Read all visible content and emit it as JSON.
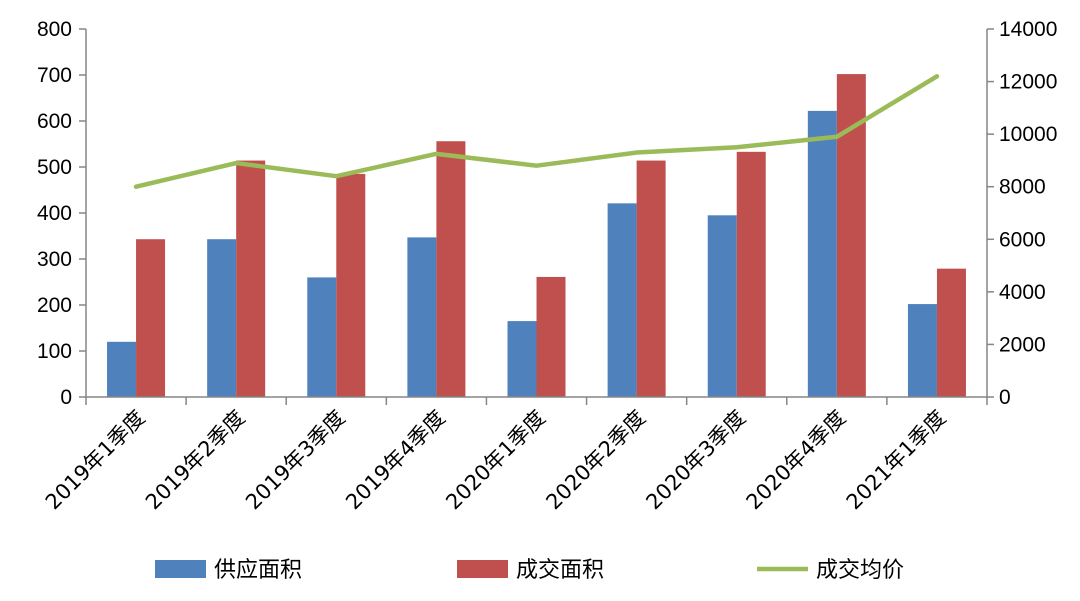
{
  "chart_data": {
    "type": "bar+line",
    "categories": [
      "2019年1季度",
      "2019年2季度",
      "2019年3季度",
      "2019年4季度",
      "2020年1季度",
      "2020年2季度",
      "2020年3季度",
      "2020年4季度",
      "2021年1季度"
    ],
    "series": [
      {
        "name": "供应面积",
        "type": "bar",
        "axis": "left",
        "color": "#4f81bd",
        "values": [
          120,
          343,
          260,
          347,
          165,
          421,
          395,
          622,
          202
        ]
      },
      {
        "name": "成交面积",
        "type": "bar",
        "axis": "left",
        "color": "#c0504d",
        "values": [
          343,
          514,
          485,
          556,
          261,
          514,
          533,
          702,
          279
        ]
      },
      {
        "name": "成交均价",
        "type": "line",
        "axis": "right",
        "color": "#9bbb59",
        "values": [
          8000,
          8900,
          8400,
          9250,
          8800,
          9300,
          9500,
          9900,
          12200
        ]
      }
    ],
    "y_left": {
      "min": 0,
      "max": 800,
      "ticks": [
        "0",
        "100",
        "200",
        "300",
        "400",
        "500",
        "600",
        "700",
        "800"
      ]
    },
    "y_right": {
      "min": 0,
      "max": 14000,
      "ticks": [
        "0",
        "2000",
        "4000",
        "6000",
        "8000",
        "10000",
        "12000",
        "14000"
      ]
    },
    "legend_position": "bottom",
    "grid": false
  }
}
